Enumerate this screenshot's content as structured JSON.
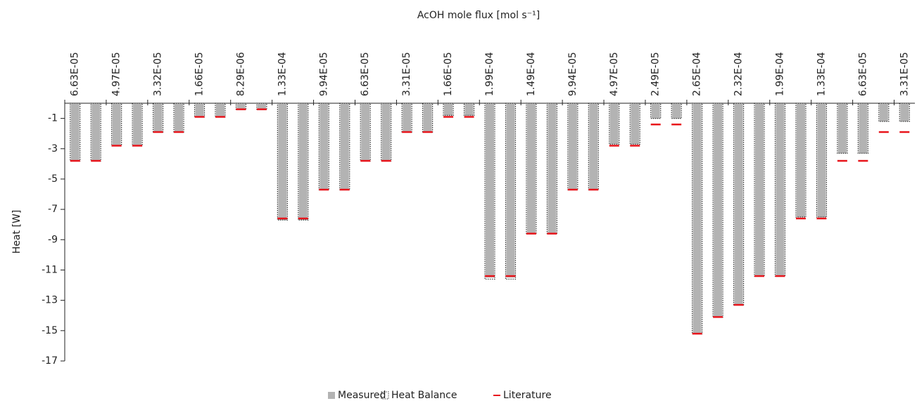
{
  "chart_data": {
    "type": "bar",
    "title": "AcOH mole flux [mol s⁻¹]",
    "y_label": "Heat [W]",
    "categories": [
      "6.63E-05",
      null,
      "4.97E-05",
      null,
      "3.32E-05",
      null,
      "1.66E-05",
      null,
      "8.29E-06",
      null,
      "1.33E-04",
      null,
      "9.94E-05",
      null,
      "6.63E-05",
      null,
      "3.31E-05",
      null,
      "1.66E-05",
      null,
      "1.99E-04",
      null,
      "1.49E-04",
      null,
      "9.94E-05",
      null,
      "4.97E-05",
      null,
      "2.49E-05",
      null,
      "2.65E-04",
      null,
      "2.32E-04",
      null,
      "1.99E-04",
      null,
      "1.33E-04",
      null,
      "6.63E-05",
      null,
      "3.31E-05"
    ],
    "series": [
      {
        "name": "Measured",
        "color": "#b3b3b3",
        "style": "fill",
        "values": [
          -3.8,
          -3.8,
          -2.8,
          -2.8,
          -1.9,
          -1.9,
          -0.9,
          -0.9,
          -0.4,
          -0.4,
          -7.7,
          -7.7,
          -5.7,
          -5.7,
          -3.8,
          -3.8,
          -1.9,
          -1.9,
          -0.8,
          -0.8,
          -11.5,
          -11.5,
          -8.6,
          -8.6,
          -5.7,
          -5.7,
          -2.7,
          -2.7,
          -1.0,
          -1.0,
          -15.2,
          -14.1,
          -13.3,
          -11.4,
          -11.4,
          -7.5,
          -7.5,
          -3.3,
          -3.3,
          -1.2,
          -1.2
        ]
      },
      {
        "name": "Heat Balance",
        "color": "#333333",
        "style": "outline",
        "values": [
          -3.8,
          -3.8,
          -2.8,
          -2.8,
          -1.9,
          -1.9,
          -0.9,
          -0.9,
          -0.4,
          -0.4,
          -7.7,
          -7.7,
          -5.7,
          -5.7,
          -3.8,
          -3.8,
          -1.9,
          -1.9,
          -0.8,
          -0.8,
          -11.6,
          -11.6,
          -8.6,
          -8.6,
          -5.7,
          -5.7,
          -2.7,
          -2.7,
          -1.0,
          -1.0,
          -15.2,
          -14.1,
          -13.3,
          -11.4,
          -11.4,
          -7.5,
          -7.5,
          -3.3,
          -3.3,
          -1.2,
          -1.2
        ]
      },
      {
        "name": "Literature",
        "color": "#e8141b",
        "style": "dash",
        "values": [
          -3.8,
          -3.8,
          -2.8,
          -2.8,
          -1.9,
          -1.9,
          -0.9,
          -0.9,
          -0.4,
          -0.4,
          -7.6,
          -7.6,
          -5.7,
          -5.7,
          -3.8,
          -3.8,
          -1.9,
          -1.9,
          -0.9,
          -0.9,
          -11.4,
          -11.4,
          -8.6,
          -8.6,
          -5.7,
          -5.7,
          -2.8,
          -2.8,
          -1.4,
          -1.4,
          -15.2,
          -14.1,
          -13.3,
          -11.4,
          -11.4,
          -7.6,
          -7.6,
          -3.8,
          -3.8,
          -1.9,
          -1.9
        ]
      }
    ],
    "ylim": [
      -17,
      0
    ],
    "yticks": [
      -1,
      -3,
      -5,
      -7,
      -9,
      -11,
      -13,
      -15,
      -17
    ],
    "grid": false
  }
}
